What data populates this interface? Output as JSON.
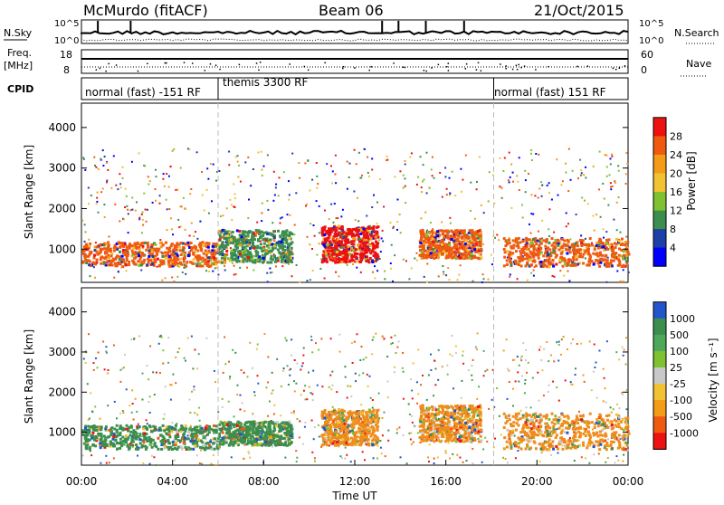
{
  "header": {
    "station": "McMurdo (fitACF)",
    "beam": "Beam 06",
    "date": "21/Oct/2015"
  },
  "noise_panel": {
    "left_label": "N.Sky",
    "right_label": "N.Search",
    "left_ticks": [
      "10^5",
      "10^0"
    ],
    "right_ticks": [
      "10^5",
      "10^0"
    ]
  },
  "freq_panel": {
    "left_label_1": "Freq.",
    "left_label_2": "[MHz]",
    "right_label": "Nave",
    "left_ticks": [
      "18",
      "8"
    ],
    "right_ticks": [
      "60",
      "0"
    ]
  },
  "cpid": {
    "label": "CPID",
    "segments": [
      "normal (fast) -151 RF",
      "themis 3300 RF",
      "normal (fast) 151 RF"
    ],
    "boundaries_hours": [
      6.0,
      18.1
    ]
  },
  "chart_data": [
    {
      "type": "heatmap",
      "name": "Power",
      "ylabel": "Slant Range [km]",
      "yticks": [
        1000,
        2000,
        3000,
        4000
      ],
      "ylim": [
        180,
        4600
      ],
      "xlim": [
        0,
        24
      ],
      "colorbar": {
        "label": "Power [dB]",
        "ticks": [
          "4",
          "8",
          "12",
          "16",
          "20",
          "24",
          "28"
        ],
        "colors": [
          "#0000ff",
          "#1e3ea8",
          "#3b8e4e",
          "#7fc12e",
          "#f1c232",
          "#f29c18",
          "#ef5a10",
          "#ee1111"
        ]
      },
      "bands": [
        {
          "x0": 0.0,
          "x1": 6.0,
          "r0": 600,
          "r1": 1200,
          "color": "#ef5a10"
        },
        {
          "x0": 6.0,
          "x1": 9.2,
          "r0": 700,
          "r1": 1500,
          "color": "#3b8e4e"
        },
        {
          "x0": 10.5,
          "x1": 13.0,
          "r0": 700,
          "r1": 1600,
          "color": "#ee1111"
        },
        {
          "x0": 14.8,
          "x1": 17.5,
          "r0": 800,
          "r1": 1500,
          "color": "#ef5a10"
        },
        {
          "x0": 18.5,
          "x1": 24.0,
          "r0": 600,
          "r1": 1300,
          "color": "#ef5a10"
        }
      ]
    },
    {
      "type": "heatmap",
      "name": "Velocity",
      "ylabel": "Slant Range [km]",
      "yticks": [
        1000,
        2000,
        3000,
        4000
      ],
      "ylim": [
        180,
        4600
      ],
      "xlim": [
        0,
        24
      ],
      "colorbar": {
        "label": "Velocity [m s⁻¹]",
        "ticks": [
          "1000",
          "500",
          "100",
          "25",
          "-25",
          "-100",
          "-500",
          "-1000"
        ],
        "colors": [
          "#2255cc",
          "#3b8e4e",
          "#4ea85a",
          "#7fc12e",
          "#c8c8c8",
          "#f1c232",
          "#f29c18",
          "#ef5a10",
          "#ee1111"
        ]
      },
      "bands": [
        {
          "x0": 0.0,
          "x1": 6.0,
          "r0": 600,
          "r1": 1200,
          "color": "#3b8e4e"
        },
        {
          "x0": 6.0,
          "x1": 9.2,
          "r0": 700,
          "r1": 1300,
          "color": "#3b8e4e"
        },
        {
          "x0": 10.5,
          "x1": 13.0,
          "r0": 700,
          "r1": 1600,
          "color": "#ef8c1c"
        },
        {
          "x0": 14.8,
          "x1": 17.5,
          "r0": 800,
          "r1": 1700,
          "color": "#ef8c1c"
        },
        {
          "x0": 18.5,
          "x1": 24.0,
          "r0": 600,
          "r1": 1500,
          "color": "#ef8c1c"
        }
      ]
    }
  ],
  "xaxis": {
    "label": "Time UT",
    "ticks": [
      "00:00",
      "04:00",
      "08:00",
      "12:00",
      "16:00",
      "20:00",
      "00:00"
    ]
  }
}
